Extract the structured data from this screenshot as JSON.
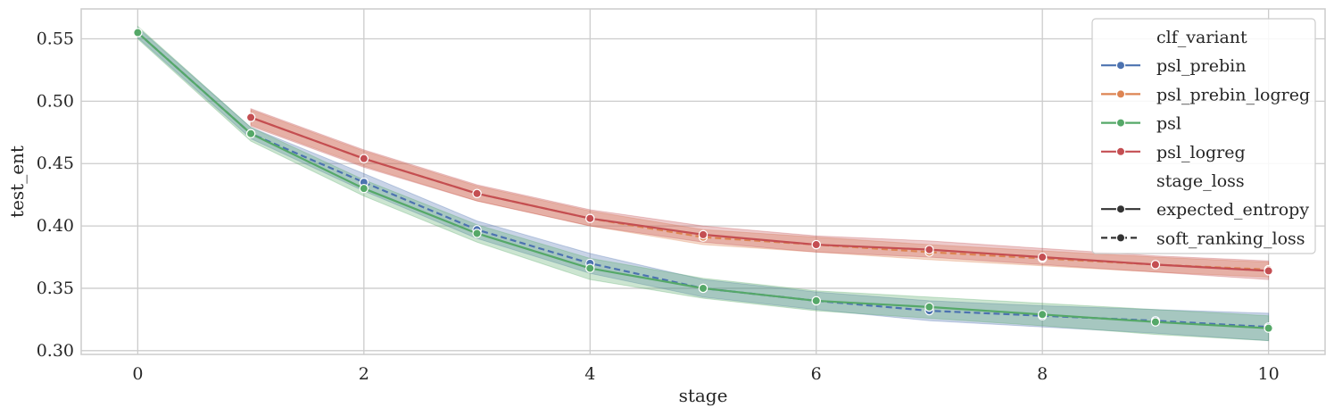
{
  "chart_data": {
    "type": "line",
    "xlabel": "stage",
    "ylabel": "test_ent",
    "xlim": [
      -0.5,
      10.5
    ],
    "ylim": [
      0.297,
      0.574
    ],
    "x_ticks": [
      0,
      2,
      4,
      6,
      8,
      10
    ],
    "y_ticks": [
      0.3,
      0.35,
      0.4,
      0.45,
      0.5,
      0.55
    ],
    "x_tick_labels": [
      "0",
      "2",
      "4",
      "6",
      "8",
      "10"
    ],
    "y_tick_labels": [
      "0.30",
      "0.35",
      "0.40",
      "0.45",
      "0.50",
      "0.55"
    ],
    "grid": true,
    "legend_position": "top-right",
    "legend": {
      "hue_title": "clf_variant",
      "style_title": "stage_loss",
      "hue_entries": [
        {
          "name": "psl_prebin",
          "color": "#4c72b0"
        },
        {
          "name": "psl_prebin_logreg",
          "color": "#dd8452"
        },
        {
          "name": "psl",
          "color": "#55a868"
        },
        {
          "name": "psl_logreg",
          "color": "#c44e52"
        }
      ],
      "style_entries": [
        {
          "name": "expected_entropy",
          "dash": "solid"
        },
        {
          "name": "soft_ranking_loss",
          "dash": "dashed"
        }
      ]
    },
    "series": [
      {
        "name": "psl_prebin",
        "color": "#4c72b0",
        "dash": "dashed",
        "x": [
          0,
          1,
          2,
          3,
          4,
          5,
          6,
          7,
          8,
          9,
          10
        ],
        "y": [
          0.555,
          0.474,
          0.435,
          0.397,
          0.37,
          0.35,
          0.34,
          0.332,
          0.328,
          0.324,
          0.319
        ],
        "lower": [
          0.551,
          0.47,
          0.428,
          0.39,
          0.362,
          0.343,
          0.333,
          0.324,
          0.319,
          0.314,
          0.308
        ],
        "upper": [
          0.559,
          0.479,
          0.442,
          0.404,
          0.378,
          0.357,
          0.347,
          0.34,
          0.336,
          0.333,
          0.33
        ]
      },
      {
        "name": "psl_prebin_logreg",
        "color": "#dd8452",
        "dash": "dashed",
        "x": [
          1,
          2,
          3,
          4,
          5,
          6,
          7,
          8,
          9,
          10
        ],
        "y": [
          0.487,
          0.454,
          0.426,
          0.406,
          0.391,
          0.385,
          0.379,
          0.374,
          0.369,
          0.365
        ],
        "lower": [
          0.481,
          0.448,
          0.42,
          0.4,
          0.385,
          0.379,
          0.373,
          0.368,
          0.363,
          0.359
        ],
        "upper": [
          0.493,
          0.46,
          0.432,
          0.412,
          0.397,
          0.391,
          0.385,
          0.38,
          0.375,
          0.371
        ]
      },
      {
        "name": "psl",
        "color": "#55a868",
        "dash": "solid",
        "x": [
          0,
          1,
          2,
          3,
          4,
          5,
          6,
          7,
          8,
          9,
          10
        ],
        "y": [
          0.555,
          0.474,
          0.43,
          0.394,
          0.366,
          0.35,
          0.34,
          0.335,
          0.329,
          0.323,
          0.318
        ],
        "lower": [
          0.55,
          0.468,
          0.424,
          0.387,
          0.357,
          0.342,
          0.332,
          0.326,
          0.32,
          0.313,
          0.308
        ],
        "upper": [
          0.56,
          0.479,
          0.437,
          0.401,
          0.374,
          0.358,
          0.348,
          0.343,
          0.338,
          0.333,
          0.328
        ]
      },
      {
        "name": "psl_logreg",
        "color": "#c44e52",
        "dash": "solid",
        "x": [
          1,
          2,
          3,
          4,
          5,
          6,
          7,
          8,
          9,
          10
        ],
        "y": [
          0.487,
          0.454,
          0.426,
          0.406,
          0.393,
          0.385,
          0.381,
          0.375,
          0.369,
          0.364
        ],
        "lower": [
          0.48,
          0.447,
          0.42,
          0.4,
          0.387,
          0.379,
          0.375,
          0.369,
          0.363,
          0.357
        ],
        "upper": [
          0.494,
          0.461,
          0.433,
          0.413,
          0.4,
          0.392,
          0.388,
          0.382,
          0.376,
          0.372
        ]
      }
    ]
  }
}
